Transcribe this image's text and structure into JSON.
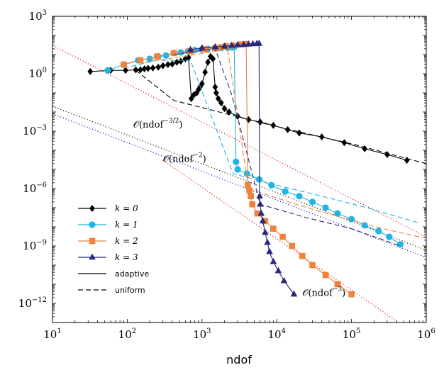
{
  "chart_data": {
    "type": "line",
    "xscale": "log",
    "yscale": "log",
    "xlim": [
      10,
      1000000
    ],
    "ylim": [
      1e-13,
      1000
    ],
    "xlabel": "ndof",
    "ylabel": "",
    "x_ticks": [
      {
        "v": 10,
        "base": "10",
        "exp": "1"
      },
      {
        "v": 100,
        "base": "10",
        "exp": "2"
      },
      {
        "v": 1000,
        "base": "10",
        "exp": "3"
      },
      {
        "v": 10000,
        "base": "10",
        "exp": "4"
      },
      {
        "v": 100000,
        "base": "10",
        "exp": "5"
      },
      {
        "v": 1000000,
        "base": "10",
        "exp": "6"
      }
    ],
    "y_ticks": [
      {
        "v": 1000,
        "base": "10",
        "exp": "3"
      },
      {
        "v": 1,
        "base": "10",
        "exp": "0"
      },
      {
        "v": 0.001,
        "base": "10",
        "exp": "−3"
      },
      {
        "v": 1e-06,
        "base": "10",
        "exp": "−6"
      },
      {
        "v": 1e-09,
        "base": "10",
        "exp": "−9"
      },
      {
        "v": 1e-12,
        "base": "10",
        "exp": "−12"
      }
    ],
    "grid": false,
    "legend_position": "bottom-left",
    "legend": [
      {
        "label": "k = 0",
        "color": "#000000",
        "marker": "diamond",
        "style": "solid"
      },
      {
        "label": "k = 1",
        "color": "#1eb4e6",
        "marker": "circle",
        "style": "solid"
      },
      {
        "label": "k = 2",
        "color": "#f0823c",
        "marker": "square",
        "style": "solid"
      },
      {
        "label": "k = 3",
        "color": "#28287a",
        "marker": "triangle",
        "style": "solid"
      },
      {
        "label": "adaptive",
        "color": "#000000",
        "marker": "none",
        "style": "solid"
      },
      {
        "label": "uniform",
        "color": "#000000",
        "marker": "none",
        "style": "dashed"
      }
    ],
    "annotations": [
      {
        "text_main": "𝒪(ndof",
        "text_exp": "−3/2",
        "text_tail": ")",
        "x": 120,
        "y": 0.0015
      },
      {
        "text_main": "𝒪(ndof",
        "text_exp": "−2",
        "text_tail": ")",
        "x": 300,
        "y": 2.5e-05
      },
      {
        "text_main": "𝒪(ndof",
        "text_exp": "−3",
        "text_tail": ")",
        "x": 22000,
        "y": 2.5e-12
      }
    ],
    "series": [
      {
        "name": "k = 0",
        "kind": "adaptive",
        "color": "#000000",
        "marker": "diamond",
        "dash": "",
        "x": [
          32,
          60,
          95,
          130,
          150,
          170,
          190,
          220,
          260,
          300,
          350,
          400,
          460,
          520,
          600,
          660,
          720,
          780,
          850,
          900,
          940,
          1000,
          1100,
          1200,
          1300,
          1400,
          1500,
          1550,
          1650,
          1800,
          2000,
          2300,
          3000,
          4200,
          6000,
          9000,
          14000,
          20000,
          40000,
          80000,
          150000,
          300000,
          550000
        ],
        "y": [
          1.3,
          1.5,
          1.5,
          1.6,
          1.6,
          1.8,
          1.9,
          2.0,
          2.2,
          2.6,
          3.0,
          3.2,
          4.0,
          4.5,
          6.0,
          7.0,
          0.05,
          0.08,
          0.1,
          0.15,
          0.2,
          0.3,
          1.2,
          4.0,
          8.0,
          6.0,
          0.2,
          0.1,
          0.05,
          0.03,
          0.015,
          0.01,
          0.006,
          0.004,
          0.003,
          0.002,
          0.0012,
          0.0008,
          0.0005,
          0.00025,
          0.00012,
          6e-05,
          3e-05
        ]
      },
      {
        "name": "k = 0",
        "kind": "uniform",
        "color": "#000000",
        "marker": "diamond",
        "dash": "7,4",
        "x": [
          130,
          420,
          1700,
          6800,
          27000,
          110000,
          1000000
        ],
        "y": [
          1.5,
          0.04,
          0.01,
          0.0025,
          0.0007,
          0.0002,
          2e-05
        ]
      },
      {
        "name": "k = 1",
        "kind": "adaptive",
        "color": "#1eb4e6",
        "marker": "circle",
        "dash": "",
        "x": [
          55,
          90,
          140,
          200,
          260,
          330,
          420,
          520,
          650,
          800,
          1000,
          1200,
          1500,
          1800,
          2200,
          2500,
          2700,
          2850,
          3000,
          4000,
          5800,
          8500,
          13000,
          20000,
          30000,
          45000,
          65000,
          100000,
          150000,
          230000,
          320000,
          450000
        ],
        "y": [
          1.5,
          3.0,
          5.0,
          6.0,
          8.0,
          9.0,
          12,
          13,
          15,
          17,
          19,
          20,
          21,
          22,
          23,
          24,
          25,
          2.5e-05,
          1e-05,
          6e-06,
          3e-06,
          1.5e-06,
          7e-07,
          4e-07,
          2e-07,
          1e-07,
          5e-08,
          2.5e-08,
          1.2e-08,
          6e-09,
          3e-09,
          1.2e-09
        ]
      },
      {
        "name": "k = 1",
        "kind": "uniform",
        "color": "#1eb4e6",
        "marker": "circle",
        "dash": "7,4",
        "x": [
          90,
          250,
          700,
          2600,
          10000,
          40000,
          160000,
          800000
        ],
        "y": [
          2.0,
          5.0,
          5.0,
          6e-06,
          1.5e-06,
          4e-07,
          1e-07,
          1.6e-08
        ]
      },
      {
        "name": "k = 2",
        "kind": "adaptive",
        "color": "#f0823c",
        "marker": "square",
        "dash": "",
        "x": [
          90,
          150,
          250,
          420,
          700,
          1100,
          1500,
          1800,
          2100,
          2600,
          3300,
          3900,
          4100,
          4300,
          4500,
          4700,
          5500,
          7000,
          9000,
          12000,
          16000,
          22000,
          30000,
          45000,
          65000,
          100000
        ],
        "y": [
          3.0,
          5.0,
          8.0,
          12,
          15,
          19,
          21,
          24,
          27,
          30,
          34,
          36,
          1.5e-06,
          8e-07,
          4e-07,
          1.5e-07,
          5e-08,
          2e-08,
          8e-09,
          3e-09,
          1e-09,
          3e-10,
          1e-10,
          3e-11,
          1e-11,
          3e-12
        ]
      },
      {
        "name": "k = 2",
        "kind": "uniform",
        "color": "#f0823c",
        "marker": "square",
        "dash": "7,4",
        "x": [
          170,
          600,
          2200,
          4200,
          18000,
          75000,
          300000,
          1000000
        ],
        "y": [
          4.0,
          8.0,
          20.0,
          1e-06,
          1.5e-07,
          3e-08,
          7e-09,
          2.5e-09
        ]
      },
      {
        "name": "k = 3",
        "kind": "adaptive",
        "color": "#28287a",
        "marker": "triangle",
        "dash": "",
        "x": [
          700,
          1000,
          1500,
          2000,
          2500,
          3000,
          3600,
          4200,
          4800,
          5400,
          5800,
          5900,
          6000,
          6200,
          6500,
          7000,
          7500,
          8000,
          9000,
          10500,
          12500,
          17000
        ],
        "y": [
          18,
          22,
          25,
          27,
          30,
          32,
          33,
          35,
          36,
          37,
          38,
          4e-07,
          1.5e-07,
          5e-08,
          2e-08,
          5e-09,
          1.5e-09,
          5e-10,
          1.5e-10,
          5e-11,
          1.5e-11,
          3e-12
        ]
      },
      {
        "name": "k = 3",
        "kind": "uniform",
        "color": "#28287a",
        "marker": "triangle",
        "dash": "7,4",
        "x": [
          420,
          1500,
          2500,
          6000,
          25000,
          100000,
          450000
        ],
        "y": [
          10.0,
          20.0,
          0.08,
          1.5e-07,
          3e-08,
          8e-09,
          1e-09
        ]
      },
      {
        "name": "O(ndof^-3/2)",
        "kind": "reference",
        "color": "#000000",
        "marker": "none",
        "dash": "1,3",
        "x": [
          10,
          1000000
        ],
        "y": [
          0.02,
          6e-10
        ]
      },
      {
        "name": "O(ndof^-3/2) lower",
        "kind": "reference",
        "color": "#0000e0",
        "marker": "none",
        "dash": "1,3",
        "x": [
          10,
          1000000
        ],
        "y": [
          0.008,
          2.5e-10
        ]
      },
      {
        "name": "O(ndof^-2)",
        "kind": "reference",
        "color": "#e00000",
        "marker": "none",
        "dash": "1,3",
        "x": [
          10,
          1000000
        ],
        "y": [
          30,
          3e-09
        ]
      },
      {
        "name": "O(ndof^-3)",
        "kind": "reference",
        "color": "#e00000",
        "marker": "none",
        "dash": "1,3",
        "x": [
          300,
          1000000
        ],
        "y": [
          3e-05,
          1e-14
        ]
      }
    ]
  }
}
